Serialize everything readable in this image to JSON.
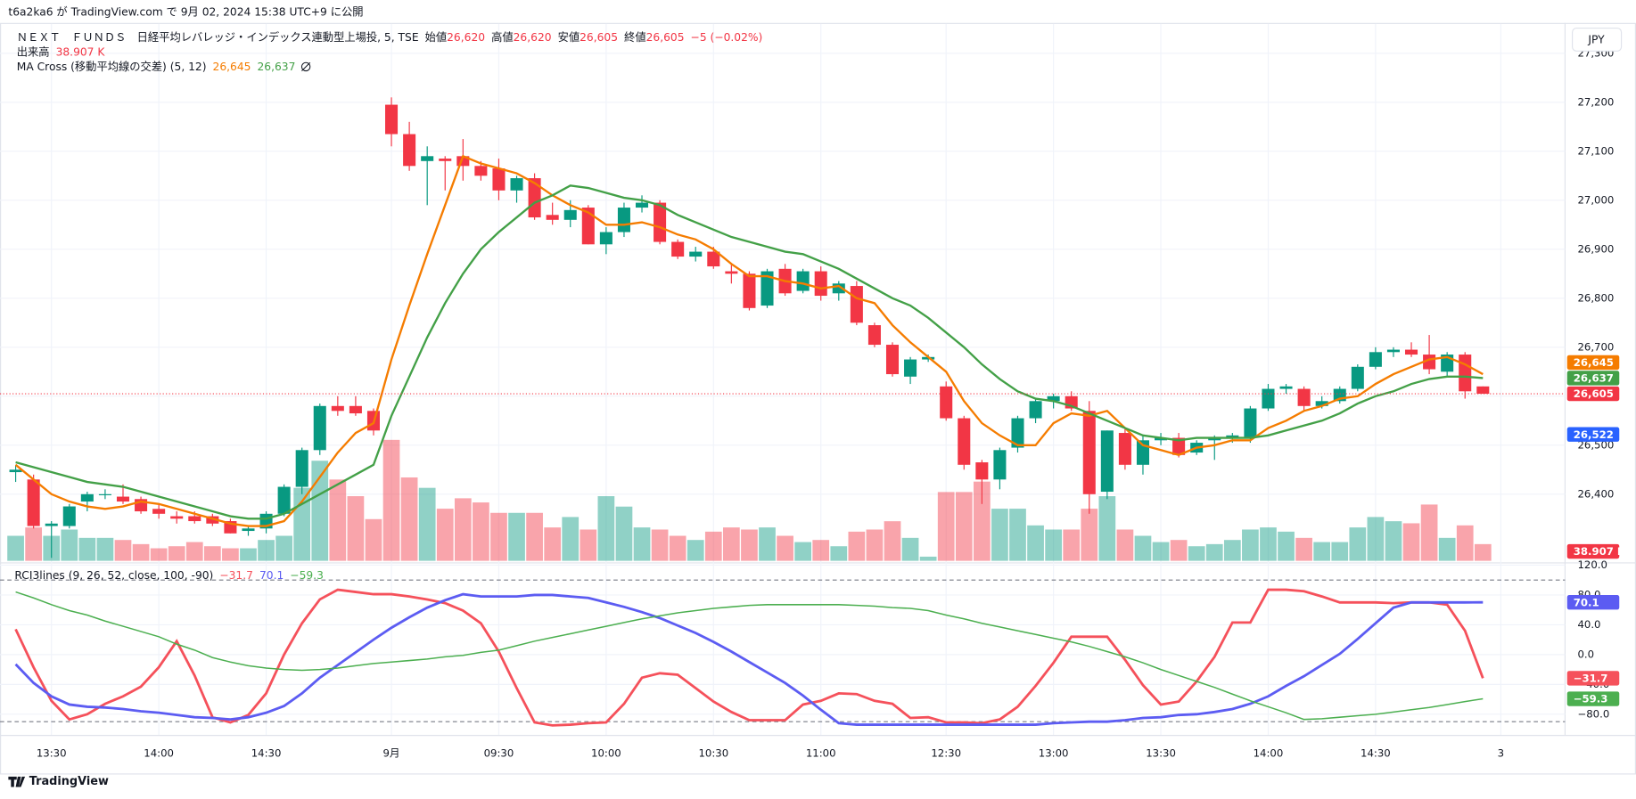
{
  "publish_note": "t6a2ka6 が TradingView.com で 9月 02, 2024 15:38 UTC+9 に公開",
  "currency_button": "JPY",
  "footer": {
    "brand": "TradingView"
  },
  "chart_data": [
    {
      "type": "candlestick",
      "title": "ＮＥＸＴ　ＦＵＮＤＳ　日経平均レバレッジ・インデックス連動型上場投, 5, TSE",
      "legend_ohlc": [
        {
          "name": "始値",
          "value_label": "26,620"
        },
        {
          "name": "高値",
          "value_label": "26,620"
        },
        {
          "name": "安値",
          "value_label": "26,605"
        },
        {
          "name": "終値",
          "value_label": "26,605"
        }
      ],
      "change_label": "−5 (−0.02%)",
      "volume_title": "出来高",
      "volume_label": "38.907 K",
      "categories": [
        null,
        null,
        "13:30",
        null,
        null,
        null,
        null,
        null,
        "14:00",
        null,
        null,
        null,
        null,
        null,
        "14:30",
        null,
        null,
        null,
        null,
        null,
        null,
        "9月",
        null,
        null,
        null,
        null,
        null,
        "09:30",
        null,
        null,
        null,
        null,
        null,
        "10:00",
        null,
        null,
        null,
        null,
        null,
        "10:30",
        null,
        null,
        null,
        null,
        null,
        "11:00",
        null,
        null,
        null,
        null,
        null,
        null,
        "12:30",
        null,
        null,
        null,
        null,
        null,
        "13:00",
        null,
        null,
        null,
        null,
        null,
        "13:30",
        null,
        null,
        null,
        null,
        null,
        "14:00",
        null,
        null,
        null,
        null,
        null,
        "14:30",
        null,
        null,
        null,
        null,
        null,
        null,
        "3"
      ],
      "open": [
        26445,
        26430,
        26335,
        26335,
        26385,
        26398,
        26395,
        26390,
        26370,
        26355,
        26355,
        26355,
        26345,
        26325,
        26330,
        26360,
        26415,
        26490,
        26580,
        26580,
        26570,
        27195,
        27135,
        27080,
        27085,
        27090,
        27070,
        27065,
        27020,
        27045,
        26970,
        26960,
        26985,
        26910,
        26935,
        26985,
        26995,
        26915,
        26885,
        26895,
        26855,
        26850,
        26785,
        26860,
        26815,
        26855,
        26810,
        26825,
        26745,
        26705,
        26640,
        26675,
        26620,
        26555,
        26465,
        26430,
        26495,
        26555,
        26590,
        26600,
        26570,
        26405,
        26525,
        26460,
        26510,
        26515,
        26485,
        26510,
        26515,
        26515,
        26575,
        26615,
        26615,
        26580,
        26590,
        26615,
        26660,
        26690,
        26695,
        26685,
        26650,
        26685,
        26620,
        null
      ],
      "high": [
        26460,
        26440,
        26345,
        26380,
        26405,
        26410,
        26420,
        26395,
        26380,
        26365,
        26365,
        26360,
        26350,
        26335,
        26365,
        26420,
        26495,
        26585,
        26600,
        26600,
        26575,
        27210,
        27160,
        27110,
        27090,
        27125,
        27080,
        27085,
        27050,
        27055,
        26995,
        27000,
        26990,
        26945,
        26995,
        27010,
        27000,
        26920,
        26905,
        26905,
        26870,
        26855,
        26860,
        26870,
        26860,
        26865,
        26835,
        26835,
        26750,
        26710,
        26680,
        26685,
        26630,
        26560,
        26470,
        26495,
        26560,
        26595,
        26605,
        26610,
        26590,
        26530,
        26535,
        26520,
        26525,
        26525,
        26510,
        26520,
        26525,
        26580,
        26625,
        26625,
        26620,
        26600,
        26620,
        26665,
        26700,
        26700,
        26710,
        26725,
        26690,
        26690,
        26620,
        null
      ],
      "low": [
        26425,
        26330,
        26270,
        26330,
        26365,
        26390,
        26380,
        26360,
        26350,
        26340,
        26340,
        26335,
        26320,
        26315,
        26320,
        26355,
        26400,
        26480,
        26560,
        26560,
        26520,
        27110,
        27060,
        26990,
        27020,
        27040,
        27040,
        27000,
        26995,
        26960,
        26950,
        26945,
        26910,
        26890,
        26925,
        26975,
        26910,
        26880,
        26875,
        26860,
        26830,
        26775,
        26780,
        26805,
        26810,
        26795,
        26795,
        26745,
        26700,
        26640,
        26625,
        26670,
        26550,
        26450,
        26380,
        26410,
        26485,
        26545,
        26575,
        26570,
        26360,
        26390,
        26450,
        26440,
        26500,
        26475,
        26480,
        26470,
        26505,
        26505,
        26570,
        26605,
        26570,
        26575,
        26585,
        26610,
        26655,
        26680,
        26680,
        26645,
        26640,
        26595,
        26605,
        null
      ],
      "close": [
        26450,
        26335,
        26340,
        26375,
        26400,
        26400,
        26385,
        26365,
        26360,
        26350,
        26345,
        26340,
        26320,
        26330,
        26360,
        26415,
        26490,
        26580,
        26570,
        26565,
        26530,
        27135,
        27070,
        27090,
        27080,
        27070,
        27050,
        27020,
        27045,
        26965,
        26960,
        26980,
        26910,
        26935,
        26985,
        26995,
        26915,
        26885,
        26895,
        26865,
        26850,
        26780,
        26855,
        26810,
        26855,
        26805,
        26830,
        26750,
        26705,
        26645,
        26675,
        26680,
        26555,
        26460,
        26430,
        26490,
        26555,
        26590,
        26600,
        26575,
        26400,
        26530,
        26460,
        26510,
        26515,
        26480,
        26505,
        26515,
        26520,
        26575,
        26615,
        26620,
        26580,
        26590,
        26615,
        26660,
        26690,
        26695,
        26685,
        26655,
        26685,
        26610,
        26605,
        null
      ],
      "volume": [
        58300,
        77800,
        58300,
        72900,
        53500,
        53500,
        48600,
        38900,
        29200,
        34000,
        43700,
        34000,
        29200,
        29200,
        48600,
        58300,
        170100,
        233300,
        189500,
        150700,
        97200,
        281900,
        194400,
        170100,
        121500,
        145800,
        136100,
        111800,
        111800,
        111800,
        77800,
        102100,
        72900,
        150700,
        126400,
        77800,
        72900,
        58300,
        48600,
        68000,
        77800,
        72900,
        77800,
        58300,
        43700,
        48600,
        34000,
        68000,
        72900,
        92300,
        53500,
        9700,
        160400,
        160400,
        184700,
        121500,
        121500,
        82600,
        72900,
        72900,
        121500,
        150700,
        72900,
        58300,
        43700,
        48600,
        34000,
        38900,
        48600,
        72900,
        77800,
        68000,
        53500,
        43700,
        43700,
        77800,
        102100,
        92300,
        87500,
        131200,
        53500,
        82600,
        38907,
        null
      ],
      "up_color": "#089981",
      "down_color": "#f23645",
      "ylim": [
        26264,
        27313
      ],
      "yticks": [
        {
          "value": 26400,
          "label": "26,400"
        },
        {
          "value": 26500,
          "label": "26,500"
        },
        {
          "value": 26600,
          "label": "26,600"
        },
        {
          "value": 26700,
          "label": "26,700"
        },
        {
          "value": 26800,
          "label": "26,800"
        },
        {
          "value": 26900,
          "label": "26,900"
        },
        {
          "value": 27000,
          "label": "27,000"
        },
        {
          "value": 27100,
          "label": "27,100"
        },
        {
          "value": 27200,
          "label": "27,200"
        },
        {
          "value": 27300,
          "label": "27,300"
        }
      ],
      "grid": true,
      "ma_cross": {
        "title": "MA Cross (移動平均線の交差) (5, 12)",
        "series": [
          {
            "color": "#f57c00",
            "last_value_label": "26,645",
            "values": [
              26460,
              26430,
              26400,
              26385,
              26375,
              26370,
              26375,
              26385,
              26380,
              26370,
              26360,
              26350,
              26340,
              26335,
              26335,
              26345,
              26385,
              26435,
              26485,
              26525,
              26545,
              26675,
              26785,
              26890,
              26990,
              27090,
              27075,
              27065,
              27055,
              27035,
              27010,
              26990,
              26975,
              26950,
              26950,
              26955,
              26945,
              26930,
              26920,
              26900,
              26870,
              26845,
              26845,
              26835,
              26830,
              26820,
              26825,
              26800,
              26790,
              26745,
              26710,
              26680,
              26650,
              26590,
              26545,
              26520,
              26500,
              26500,
              26545,
              26565,
              26560,
              26570,
              26535,
              26500,
              26490,
              26480,
              26495,
              26500,
              26510,
              26510,
              26535,
              26550,
              26570,
              26580,
              26595,
              26600,
              26625,
              26645,
              26660,
              26675,
              26680,
              26665,
              26645,
              null
            ]
          },
          {
            "color": "#43a047",
            "last_value_label": "26,637",
            "values": [
              26465,
              26455,
              26445,
              26435,
              26425,
              26420,
              26415,
              26405,
              26395,
              26385,
              26375,
              26365,
              26355,
              26350,
              26350,
              26360,
              26380,
              26400,
              26420,
              26440,
              26460,
              26560,
              26640,
              26720,
              26790,
              26850,
              26900,
              26935,
              26965,
              26995,
              27010,
              27030,
              27025,
              27015,
              27005,
              27000,
              26990,
              26970,
              26955,
              26940,
              26925,
              26915,
              26905,
              26895,
              26890,
              26875,
              26860,
              26840,
              26820,
              26800,
              26785,
              26760,
              26730,
              26700,
              26665,
              26635,
              26610,
              26595,
              26590,
              26580,
              26565,
              26550,
              26535,
              26520,
              26515,
              26510,
              26515,
              26515,
              26515,
              26515,
              26520,
              26530,
              26540,
              26550,
              26565,
              26585,
              26600,
              26610,
              26625,
              26635,
              26640,
              26640,
              26637,
              null
            ]
          }
        ]
      },
      "price_markers": [
        {
          "value": 26522,
          "label": "26,522",
          "color": "#2962ff"
        }
      ]
    },
    {
      "type": "line",
      "title": "RCI3lines (9, 26, 52, close, 100, -90)",
      "series": [
        {
          "color": "#f5515b",
          "last_value_label": "−31.7",
          "values": [
            34,
            -17,
            -62,
            -87,
            -80,
            -66,
            -56,
            -43,
            -17,
            18,
            -28,
            -84,
            -91,
            -81,
            -52,
            0,
            42,
            74,
            87,
            84,
            81,
            81,
            78,
            74,
            69,
            59,
            42,
            4,
            -45,
            -91,
            -95,
            -94,
            -92,
            -91,
            -66,
            -31,
            -25,
            -27,
            -45,
            -63,
            -77,
            -88,
            -88,
            -88,
            -67,
            -62,
            -52,
            -53,
            -62,
            -66,
            -85,
            -84,
            -91,
            -91,
            -92,
            -87,
            -70,
            -42,
            -11,
            24,
            24,
            24,
            -7,
            -41,
            -67,
            -63,
            -36,
            -3,
            43,
            43,
            87,
            87,
            85,
            78,
            70,
            70,
            70,
            69,
            70,
            70,
            67,
            32,
            -31.7,
            null
          ]
        },
        {
          "color": "#5c5cf2",
          "last_value_label": "70.1",
          "values": [
            -13,
            -38,
            -56,
            -67,
            -70,
            -71,
            -73,
            -76,
            -78,
            -81,
            -84,
            -85,
            -87,
            -84,
            -78,
            -69,
            -52,
            -31,
            -14,
            3,
            20,
            36,
            50,
            63,
            73,
            81,
            78,
            78,
            78,
            80,
            80,
            78,
            76,
            70,
            64,
            57,
            49,
            39,
            29,
            17,
            4,
            -10,
            -24,
            -38,
            -55,
            -74,
            -92,
            -94,
            -94,
            -94,
            -94,
            -94,
            -94,
            -94,
            -94,
            -94,
            -94,
            -94,
            -92,
            -91,
            -90,
            -90,
            -88,
            -85,
            -84,
            -81,
            -80,
            -77,
            -73,
            -66,
            -56,
            -42,
            -29,
            -14,
            1,
            21,
            42,
            63,
            70,
            70,
            70,
            70,
            70.1,
            null
          ]
        },
        {
          "color": "#4caf50",
          "last_value_label": "−59.3",
          "values": [
            84,
            76,
            67,
            59,
            53,
            45,
            38,
            31,
            24,
            14,
            6,
            -4,
            -10,
            -15,
            -18,
            -20,
            -21,
            -20,
            -18,
            -15,
            -12,
            -10,
            -8,
            -6,
            -3,
            -1,
            3,
            6,
            12,
            18,
            23,
            28,
            33,
            38,
            43,
            48,
            52,
            56,
            59,
            62,
            64,
            66,
            67,
            67,
            67,
            67,
            67,
            66,
            65,
            63,
            62,
            59,
            53,
            48,
            42,
            37,
            32,
            27,
            22,
            17,
            11,
            4,
            -3,
            -11,
            -20,
            -28,
            -36,
            -44,
            -53,
            -62,
            -70,
            -78,
            -87,
            -86,
            -84,
            -82,
            -80,
            -77,
            -74,
            -71,
            -67,
            -63,
            -59.3,
            null
          ]
        }
      ],
      "ylim": [
        -108,
        123
      ],
      "yticks": [
        {
          "value": 120,
          "label": "120.0"
        },
        {
          "value": 80,
          "label": "80.0"
        },
        {
          "value": 40,
          "label": "40.0"
        },
        {
          "value": 0,
          "label": "0.0"
        },
        {
          "value": -40,
          "label": "−40.0"
        },
        {
          "value": -80,
          "label": "−80.0"
        }
      ],
      "levels": [
        100,
        -90
      ]
    }
  ]
}
